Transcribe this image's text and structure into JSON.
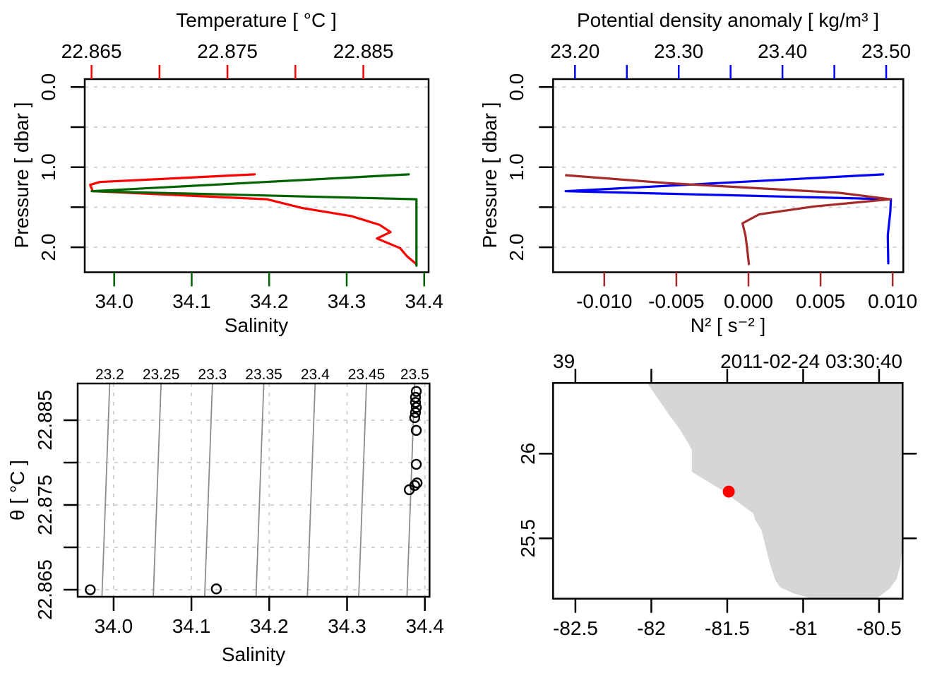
{
  "figure": {
    "background": "#FFFFFF",
    "colors": {
      "temperature": "#FF0000",
      "salinity": "#006400",
      "density": "#0000FF",
      "n2": "#A52A2A",
      "axis": "#000000",
      "grid": "#D3D3D3",
      "contour": "#8C8C8C",
      "contour_label": "#969696",
      "land": "#D6D6D6",
      "station_dot": "#FF0000",
      "point_stroke": "#000000"
    }
  },
  "chart_data": [
    {
      "id": "profile-temp-sal",
      "type": "line",
      "axes": {
        "top": {
          "label": "Temperature [ °C ]",
          "color_key": "temperature",
          "range": [
            22.8645,
            22.8898
          ],
          "ticks": [
            22.865,
            22.87,
            22.875,
            22.88,
            22.885
          ],
          "tick_labels": [
            "22.865",
            "",
            "22.875",
            "",
            "22.885"
          ]
        },
        "bottom": {
          "label": "Salinity",
          "color_key": "salinity",
          "range": [
            33.962,
            34.4057
          ],
          "ticks": [
            34.0,
            34.1,
            34.2,
            34.3,
            34.4
          ],
          "tick_labels": [
            "34.0",
            "34.1",
            "34.2",
            "34.3",
            "34.4"
          ]
        },
        "left": {
          "label": "Pressure [ dbar ]",
          "color_key": "axis",
          "range": [
            -0.0996,
            2.3118
          ],
          "ticks": [
            0.0,
            0.5,
            1.0,
            1.5,
            2.0
          ],
          "tick_labels": [
            "0.0",
            "",
            "1.0",
            "",
            "2.0"
          ]
        }
      },
      "gridlines_y": [
        0.0,
        0.5,
        1.0,
        1.5,
        2.0
      ],
      "series": [
        {
          "name": "temperature",
          "xaxis": "top",
          "color_key": "temperature",
          "points": [
            [
              22.877,
              1.09
            ],
            [
              22.8656,
              1.185
            ],
            [
              22.8649,
              1.22
            ],
            [
              22.8651,
              1.3
            ],
            [
              22.8779,
              1.4
            ],
            [
              22.8805,
              1.51
            ],
            [
              22.8841,
              1.61
            ],
            [
              22.8862,
              1.72
            ],
            [
              22.887,
              1.81
            ],
            [
              22.886,
              1.89
            ],
            [
              22.8877,
              2.01
            ],
            [
              22.8882,
              2.11
            ],
            [
              22.8889,
              2.21
            ]
          ]
        },
        {
          "name": "salinity",
          "xaxis": "bottom",
          "color_key": "salinity",
          "points": [
            [
              34.38,
              1.09
            ],
            [
              33.971,
              1.3
            ],
            [
              34.39,
              1.4
            ],
            [
              34.39,
              2.23
            ]
          ]
        }
      ]
    },
    {
      "id": "profile-density-n2",
      "type": "line",
      "axes": {
        "top": {
          "label": "Potential density anomaly [ kg/m³ ]",
          "color_key": "density",
          "range": [
            23.1789,
            23.5165
          ],
          "ticks": [
            23.2,
            23.25,
            23.3,
            23.35,
            23.4,
            23.45,
            23.5
          ],
          "tick_labels": [
            "23.20",
            "",
            "23.30",
            "",
            "23.40",
            "",
            "23.50"
          ]
        },
        "bottom": {
          "label": "N² [ s⁻² ]",
          "color_key": "n2",
          "range": [
            -0.01355,
            0.01074
          ],
          "ticks": [
            -0.01,
            -0.005,
            0.0,
            0.005,
            0.01
          ],
          "tick_labels": [
            "-0.010",
            "-0.005",
            "0.000",
            "0.005",
            "0.010"
          ]
        },
        "left": {
          "label": "Pressure [ dbar ]",
          "color_key": "axis",
          "range": [
            -0.0996,
            2.3118
          ],
          "ticks": [
            0.0,
            0.5,
            1.0,
            1.5,
            2.0
          ],
          "tick_labels": [
            "0.0",
            "",
            "1.0",
            "",
            "2.0"
          ]
        }
      },
      "gridlines_y": [
        0.0,
        0.5,
        1.0,
        1.5,
        2.0
      ],
      "series": [
        {
          "name": "density",
          "xaxis": "top",
          "color_key": "density",
          "points": [
            [
              23.497,
              1.09
            ],
            [
              23.191,
              1.3
            ],
            [
              23.5045,
              1.4
            ],
            [
              23.504,
              1.56
            ],
            [
              23.5015,
              1.85
            ],
            [
              23.502,
              2.2
            ]
          ]
        },
        {
          "name": "n2",
          "xaxis": "bottom",
          "color_key": "n2",
          "points": [
            [
              -0.01265,
              1.1
            ],
            [
              -0.00555,
              1.2
            ],
            [
              -0.00163,
              1.24
            ],
            [
              0.00629,
              1.32
            ],
            [
              0.00983,
              1.4
            ],
            [
              0.00457,
              1.49
            ],
            [
              0.00073,
              1.59
            ],
            [
              -0.00041,
              1.7
            ],
            [
              -0.00021,
              1.85
            ],
            [
              -0.0001,
              2.0
            ],
            [
              3e-05,
              2.21
            ]
          ]
        }
      ]
    },
    {
      "id": "ts-diagram",
      "type": "scatter",
      "axes": {
        "bottom": {
          "label": "Salinity",
          "color_key": "axis",
          "range": [
            33.9538,
            34.406
          ],
          "ticks": [
            34.0,
            34.1,
            34.2,
            34.3,
            34.4
          ],
          "tick_labels": [
            "34.0",
            "34.1",
            "34.2",
            "34.3",
            "34.4"
          ]
        },
        "left": {
          "label": "θ [ °C ]",
          "color_key": "axis",
          "range": [
            22.86417,
            22.88933
          ],
          "ticks": [
            22.865,
            22.87,
            22.875,
            22.88,
            22.885
          ],
          "tick_labels": [
            "22.865",
            "",
            "22.875",
            "",
            "22.885"
          ]
        }
      },
      "isopycnals": {
        "labels": [
          "23.2",
          "23.25",
          "23.3",
          "23.35",
          "23.4",
          "23.45",
          "23.5"
        ],
        "mid_salinity": [
          33.99,
          34.056,
          34.122,
          34.188,
          34.254,
          34.32,
          34.382
        ],
        "salinity_tilt": 0.005
      },
      "points": [
        [
          34.389,
          22.8884
        ],
        [
          34.388,
          22.8877
        ],
        [
          34.388,
          22.8871
        ],
        [
          34.389,
          22.8865
        ],
        [
          34.388,
          22.8859
        ],
        [
          34.387,
          22.8853
        ],
        [
          34.389,
          22.8838
        ],
        [
          34.389,
          22.8798
        ],
        [
          34.39,
          22.8776
        ],
        [
          34.387,
          22.8773
        ],
        [
          34.38,
          22.8768
        ],
        [
          33.97,
          22.865
        ],
        [
          34.132,
          22.8651
        ]
      ]
    },
    {
      "id": "map",
      "type": "map",
      "station_label": "39",
      "time_label": "2011-02-24 03:30:40",
      "axes": {
        "bottom": {
          "label": "",
          "color_key": "axis",
          "range": [
            -82.647,
            -80.345
          ],
          "ticks": [
            -82.5,
            -82.0,
            -81.5,
            -81.0,
            -80.5
          ],
          "tick_labels": [
            "-82.5",
            "-82",
            "-81.5",
            "-81",
            "-80.5"
          ]
        },
        "left": {
          "label": "",
          "color_key": "axis",
          "range": [
            25.144,
            26.417
          ],
          "ticks": [
            26.0,
            25.5
          ],
          "tick_labels": [
            "26",
            "25.5"
          ]
        }
      },
      "station": {
        "lon": -81.49,
        "lat": 25.776
      },
      "coastline": [
        [
          -82.027,
          26.417
        ],
        [
          -81.891,
          26.239
        ],
        [
          -81.812,
          26.143
        ],
        [
          -81.756,
          26.06
        ],
        [
          -81.733,
          26.022
        ],
        [
          -81.733,
          25.893
        ],
        [
          -81.539,
          25.787
        ],
        [
          -81.446,
          25.725
        ],
        [
          -81.329,
          25.648
        ],
        [
          -81.314,
          25.607
        ],
        [
          -81.275,
          25.551
        ],
        [
          -81.26,
          25.496
        ],
        [
          -81.221,
          25.357
        ],
        [
          -81.183,
          25.252
        ],
        [
          -81.151,
          25.211
        ],
        [
          -81.066,
          25.176
        ],
        [
          -80.942,
          25.144
        ],
        [
          -80.516,
          25.144
        ],
        [
          -80.43,
          25.204
        ],
        [
          -80.384,
          25.26
        ],
        [
          -80.36,
          25.343
        ],
        [
          -80.35,
          25.426
        ],
        [
          -80.345,
          25.5
        ],
        [
          -80.345,
          26.417
        ]
      ]
    }
  ]
}
